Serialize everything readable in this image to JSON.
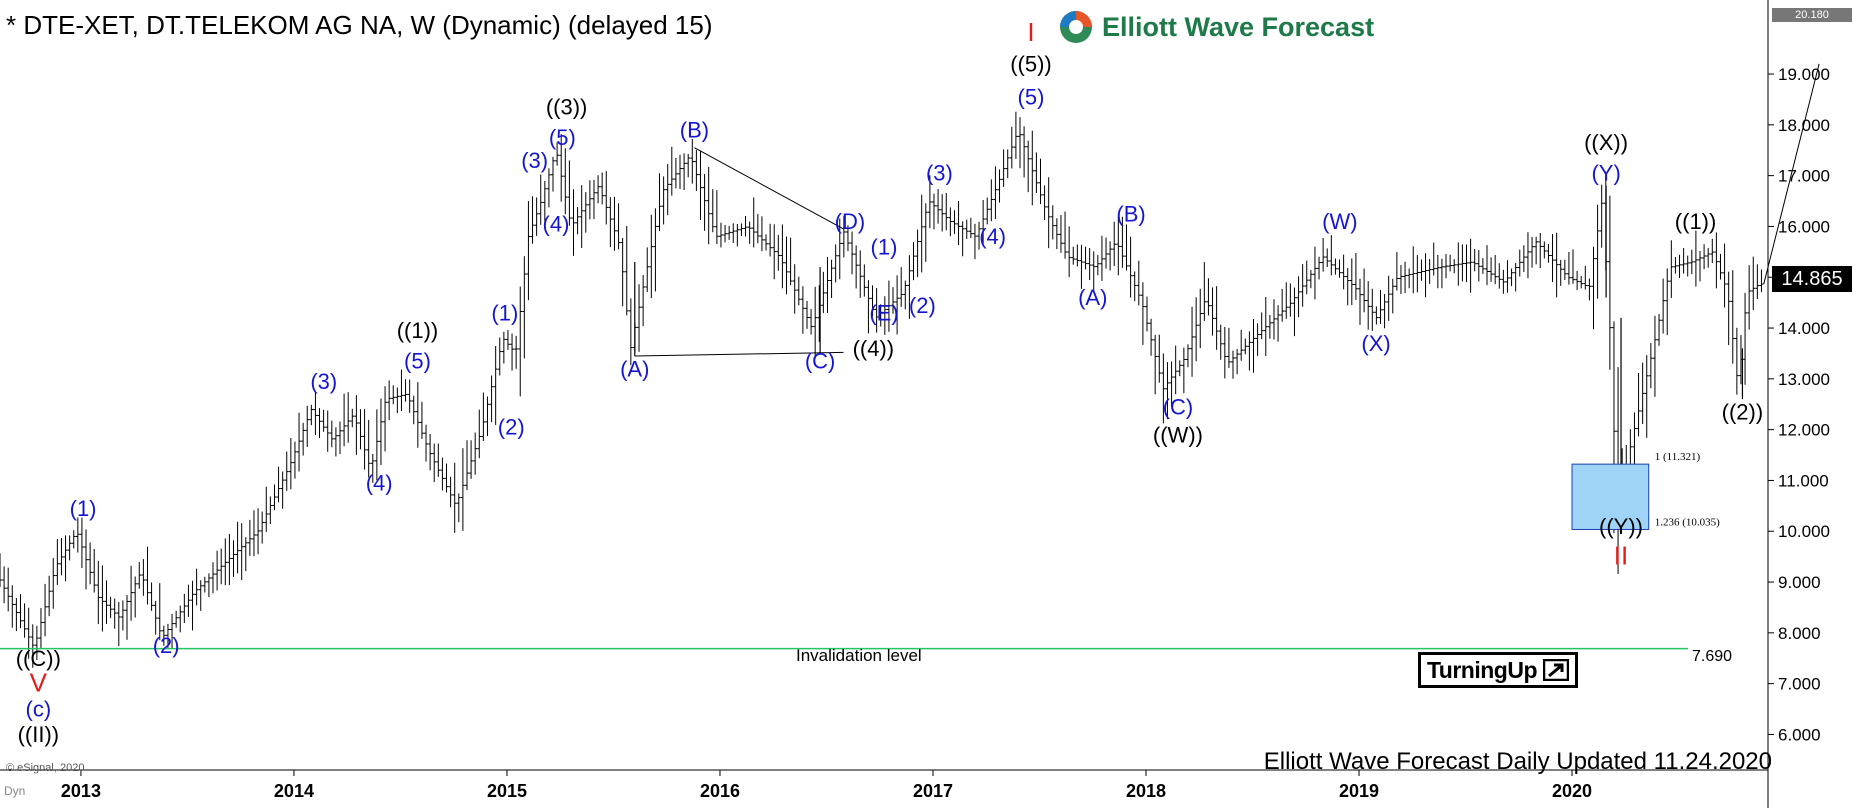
{
  "header": {
    "title": "* DTE-XET, DT.TELEKOM AG NA, W (Dynamic) (delayed 15)",
    "brand": "Elliott Wave Forecast"
  },
  "footer": {
    "update_text": "Elliott Wave Forecast Daily Updated 11.24.2020",
    "copyright": "© eSignal, 2020",
    "dyn_label": "Dyn"
  },
  "badges": {
    "turning_up": "TurningUp",
    "last_price": "14.865",
    "top_price": "20.180"
  },
  "invalidation": {
    "label": "Invalidation level",
    "price": 7.69,
    "price_text": "7.690",
    "color": "#22c55e"
  },
  "colors": {
    "blue_label": "#1515d0",
    "black_label": "#000000",
    "red_label": "#e11d1d",
    "box_fill": "#9fd4f7",
    "bars": "#000000"
  },
  "chart_data": {
    "type": "ohlc-bar",
    "title": "* DTE-XET, DT.TELEKOM AG NA, W (Dynamic) (delayed 15)",
    "ylim": [
      5.3,
      20.3
    ],
    "yticks": [
      6,
      7,
      8,
      9,
      10,
      11,
      12,
      13,
      14,
      15,
      16,
      17,
      18,
      19
    ],
    "ytick_labels": [
      "6.000",
      "7.000",
      "8.000",
      "9.000",
      "10.000",
      "11.000",
      "12.000",
      "13.000",
      "14.000",
      "15.000",
      "16.000",
      "17.000",
      "18.000",
      "19.000"
    ],
    "xlim": [
      2012.62,
      2020.92
    ],
    "xticks": [
      2013,
      2014,
      2015,
      2016,
      2017,
      2018,
      2019,
      2020
    ],
    "xtick_labels": [
      "2013",
      "2014",
      "2015",
      "2016",
      "2017",
      "2018",
      "2019",
      "2020"
    ],
    "price_path": [
      [
        2012.62,
        9.2
      ],
      [
        2012.8,
        7.7
      ],
      [
        2012.9,
        9.3
      ],
      [
        2013.0,
        10.0
      ],
      [
        2013.1,
        8.7
      ],
      [
        2013.2,
        8.3
      ],
      [
        2013.3,
        9.2
      ],
      [
        2013.4,
        7.9
      ],
      [
        2013.55,
        8.8
      ],
      [
        2013.7,
        9.4
      ],
      [
        2013.85,
        10.0
      ],
      [
        2014.0,
        11.3
      ],
      [
        2014.1,
        12.4
      ],
      [
        2014.2,
        11.8
      ],
      [
        2014.3,
        12.3
      ],
      [
        2014.38,
        11.2
      ],
      [
        2014.45,
        12.6
      ],
      [
        2014.55,
        12.7
      ],
      [
        2014.65,
        11.6
      ],
      [
        2014.78,
        10.5
      ],
      [
        2014.9,
        12.0
      ],
      [
        2015.0,
        13.8
      ],
      [
        2015.06,
        13.5
      ],
      [
        2015.12,
        15.8
      ],
      [
        2015.18,
        16.5
      ],
      [
        2015.25,
        17.5
      ],
      [
        2015.32,
        16.0
      ],
      [
        2015.45,
        16.8
      ],
      [
        2015.55,
        15.6
      ],
      [
        2015.6,
        13.6
      ],
      [
        2015.75,
        16.7
      ],
      [
        2015.88,
        17.4
      ],
      [
        2016.0,
        15.8
      ],
      [
        2016.15,
        16.0
      ],
      [
        2016.3,
        15.4
      ],
      [
        2016.45,
        14.0
      ],
      [
        2016.6,
        15.9
      ],
      [
        2016.75,
        14.2
      ],
      [
        2016.88,
        14.7
      ],
      [
        2017.0,
        16.5
      ],
      [
        2017.1,
        16.1
      ],
      [
        2017.22,
        15.8
      ],
      [
        2017.32,
        16.8
      ],
      [
        2017.42,
        17.9
      ],
      [
        2017.55,
        16.3
      ],
      [
        2017.65,
        15.4
      ],
      [
        2017.78,
        15.2
      ],
      [
        2017.88,
        15.7
      ],
      [
        2018.0,
        14.5
      ],
      [
        2018.1,
        12.8
      ],
      [
        2018.2,
        13.4
      ],
      [
        2018.3,
        14.6
      ],
      [
        2018.4,
        13.3
      ],
      [
        2018.55,
        13.9
      ],
      [
        2018.7,
        14.5
      ],
      [
        2018.85,
        15.4
      ],
      [
        2019.0,
        14.8
      ],
      [
        2019.1,
        14.2
      ],
      [
        2019.2,
        15.0
      ],
      [
        2019.4,
        15.2
      ],
      [
        2019.55,
        15.3
      ],
      [
        2019.7,
        14.9
      ],
      [
        2019.85,
        15.7
      ],
      [
        2020.0,
        15.0
      ],
      [
        2020.1,
        14.8
      ],
      [
        2020.16,
        16.5
      ],
      [
        2020.2,
        13.8
      ],
      [
        2020.23,
        10.4
      ],
      [
        2020.3,
        11.8
      ],
      [
        2020.4,
        13.6
      ],
      [
        2020.48,
        15.2
      ],
      [
        2020.58,
        15.3
      ],
      [
        2020.68,
        15.5
      ],
      [
        2020.75,
        14.7
      ],
      [
        2020.8,
        12.8
      ],
      [
        2020.84,
        14.7
      ],
      [
        2020.9,
        14.865
      ]
    ],
    "projection": [
      [
        2020.9,
        14.865
      ],
      [
        2021.16,
        19.2
      ]
    ],
    "triangle_lines": [
      [
        [
          2015.6,
          13.45
        ],
        [
          2016.58,
          13.52
        ]
      ],
      [
        [
          2015.88,
          17.55
        ],
        [
          2016.58,
          15.95
        ]
      ]
    ],
    "fib_box": {
      "x": [
        2020.0,
        2020.36
      ],
      "y": [
        10.035,
        11.321
      ],
      "upper_label": "1 (11.321)",
      "lower_label": "1.236 (10.035)"
    },
    "wave_labels": [
      {
        "text": "((C))",
        "x": 2012.8,
        "y": 7.35,
        "color": "black"
      },
      {
        "text": "V",
        "x": 2012.8,
        "y": 6.85,
        "color": "red"
      },
      {
        "text": "(c)",
        "x": 2012.8,
        "y": 6.35,
        "color": "blue"
      },
      {
        "text": "((II))",
        "x": 2012.8,
        "y": 5.85,
        "color": "black"
      },
      {
        "text": "(1)",
        "x": 2013.01,
        "y": 10.3,
        "color": "blue"
      },
      {
        "text": "(2)",
        "x": 2013.4,
        "y": 7.6,
        "color": "blue"
      },
      {
        "text": "(3)",
        "x": 2014.14,
        "y": 12.8,
        "color": "blue"
      },
      {
        "text": "(4)",
        "x": 2014.4,
        "y": 10.8,
        "color": "blue"
      },
      {
        "text": "(5)",
        "x": 2014.58,
        "y": 13.2,
        "color": "blue"
      },
      {
        "text": "((1))",
        "x": 2014.58,
        "y": 13.8,
        "color": "black"
      },
      {
        "text": "(1)",
        "x": 2014.99,
        "y": 14.15,
        "color": "blue"
      },
      {
        "text": "(2)",
        "x": 2015.02,
        "y": 11.9,
        "color": "blue"
      },
      {
        "text": "(3)",
        "x": 2015.13,
        "y": 17.15,
        "color": "blue"
      },
      {
        "text": "(4)",
        "x": 2015.23,
        "y": 15.9,
        "color": "blue"
      },
      {
        "text": "(5)",
        "x": 2015.26,
        "y": 17.6,
        "color": "blue"
      },
      {
        "text": "((3))",
        "x": 2015.28,
        "y": 18.2,
        "color": "black"
      },
      {
        "text": "(A)",
        "x": 2015.6,
        "y": 13.05,
        "color": "blue"
      },
      {
        "text": "(B)",
        "x": 2015.88,
        "y": 17.75,
        "color": "blue"
      },
      {
        "text": "(C)",
        "x": 2016.47,
        "y": 13.2,
        "color": "blue"
      },
      {
        "text": "(D)",
        "x": 2016.61,
        "y": 15.95,
        "color": "blue"
      },
      {
        "text": "(E)",
        "x": 2016.77,
        "y": 14.15,
        "color": "blue"
      },
      {
        "text": "((4))",
        "x": 2016.72,
        "y": 13.45,
        "color": "black"
      },
      {
        "text": "(1)",
        "x": 2016.77,
        "y": 15.45,
        "color": "blue"
      },
      {
        "text": "(2)",
        "x": 2016.95,
        "y": 14.3,
        "color": "blue"
      },
      {
        "text": "(3)",
        "x": 2017.03,
        "y": 16.9,
        "color": "blue"
      },
      {
        "text": "(4)",
        "x": 2017.28,
        "y": 15.65,
        "color": "blue"
      },
      {
        "text": "(5)",
        "x": 2017.46,
        "y": 18.4,
        "color": "blue"
      },
      {
        "text": "((5))",
        "x": 2017.46,
        "y": 19.05,
        "color": "black"
      },
      {
        "text": "I",
        "x": 2017.46,
        "y": 19.65,
        "color": "red"
      },
      {
        "text": "(A)",
        "x": 2017.75,
        "y": 14.45,
        "color": "blue"
      },
      {
        "text": "(B)",
        "x": 2017.93,
        "y": 16.1,
        "color": "blue"
      },
      {
        "text": "(C)",
        "x": 2018.15,
        "y": 12.3,
        "color": "blue"
      },
      {
        "text": "((W))",
        "x": 2018.15,
        "y": 11.75,
        "color": "black"
      },
      {
        "text": "(W)",
        "x": 2018.91,
        "y": 15.95,
        "color": "blue"
      },
      {
        "text": "(X)",
        "x": 2019.08,
        "y": 13.55,
        "color": "blue"
      },
      {
        "text": "(Y)",
        "x": 2020.16,
        "y": 16.9,
        "color": "blue"
      },
      {
        "text": "((X))",
        "x": 2020.16,
        "y": 17.5,
        "color": "black"
      },
      {
        "text": "((Y))",
        "x": 2020.23,
        "y": 9.95,
        "color": "black"
      },
      {
        "text": "II",
        "x": 2020.23,
        "y": 9.35,
        "color": "red"
      },
      {
        "text": "((1))",
        "x": 2020.58,
        "y": 15.95,
        "color": "black"
      },
      {
        "text": "((2))",
        "x": 2020.8,
        "y": 12.2,
        "color": "black"
      }
    ]
  }
}
